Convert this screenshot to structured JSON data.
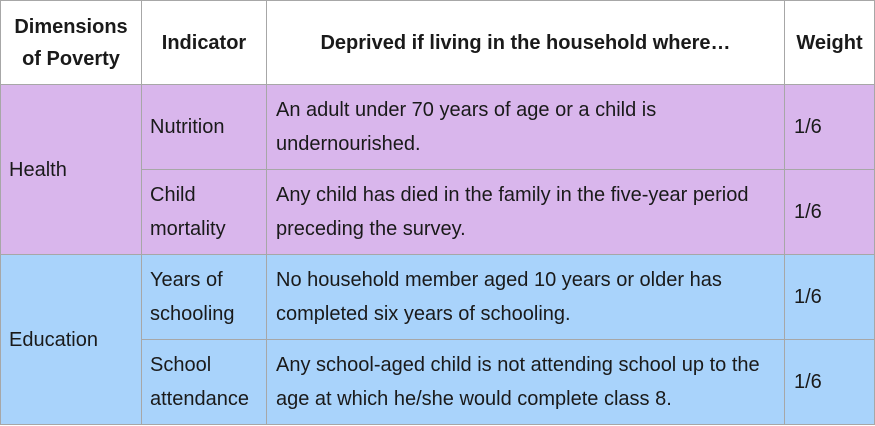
{
  "headers": {
    "dimension": "Dimensions of Poverty",
    "indicator": "Indicator",
    "deprivation": "Deprived if living in the household where…",
    "weight": "Weight"
  },
  "rows": [
    {
      "dimension": "Health",
      "indicator": "Nutrition",
      "deprivation": "An adult under 70 years of age or a child is undernourished.",
      "weight": "1/6"
    },
    {
      "dimension": "Health",
      "indicator": "Child mortality",
      "deprivation": "Any child has died in the family in the five-year period preceding the survey.",
      "weight": "1/6"
    },
    {
      "dimension": "Education",
      "indicator": "Years of schooling",
      "deprivation": "No household member aged 10 years or older has completed six years of schooling.",
      "weight": "1/6"
    },
    {
      "dimension": "Education",
      "indicator": "School attendance",
      "deprivation": "Any school-aged child is not attending school up to the age at which he/she would complete class 8.",
      "weight": "1/6"
    }
  ],
  "colors": {
    "health_bg": "#d9b6ec",
    "education_bg": "#a9d3fb",
    "border": "#a7a7a7"
  }
}
